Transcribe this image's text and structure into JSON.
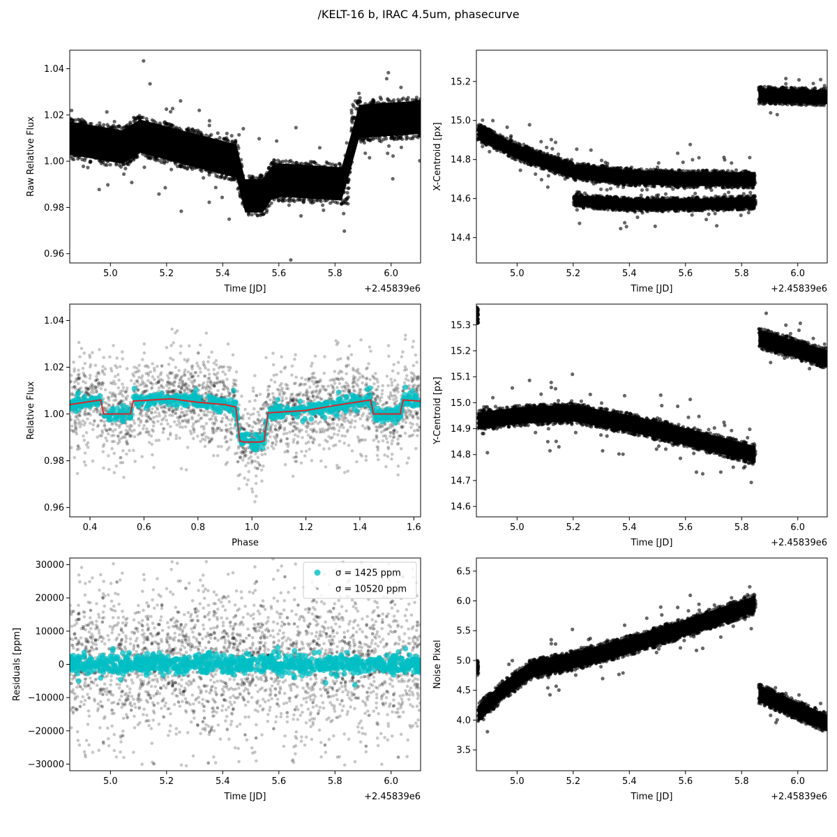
{
  "figure": {
    "title": "/KELT-16 b, IRAC 4.5um, phasecurve",
    "offset_label": "+2.45839e6"
  },
  "colors": {
    "raw_points": "#000000",
    "binned_points": "#00bfc4",
    "model_line": "#d62728",
    "axes": "#000000"
  },
  "chart_data": [
    {
      "id": "raw_flux",
      "type": "scatter",
      "title": "",
      "xlabel": "Time [JD]",
      "ylabel": "Raw Relative Flux",
      "x_offset_label": "+2.45839e6",
      "xlim": [
        4.855,
        6.105
      ],
      "ylim": [
        0.956,
        1.048
      ],
      "xticks": [
        5.0,
        5.2,
        5.4,
        5.6,
        5.8,
        6.0
      ],
      "yticks": [
        0.96,
        0.98,
        1.0,
        1.02,
        1.04
      ],
      "ytick_labels": [
        "0.96",
        "0.98",
        "1.00",
        "1.02",
        "1.04"
      ],
      "xtick_labels": [
        "5.0",
        "5.2",
        "5.4",
        "5.6",
        "5.8",
        "6.0"
      ],
      "series": [
        {
          "style": "dense-band",
          "opacity": 0.6,
          "center": [
            [
              4.855,
              1.01
            ],
            [
              5.05,
              1.006
            ],
            [
              5.1,
              1.011
            ],
            [
              5.45,
              1.0
            ],
            [
              5.48,
              0.985
            ],
            [
              5.55,
              0.985
            ],
            [
              5.58,
              0.992
            ],
            [
              5.85,
              0.99
            ],
            [
              5.86,
              1.017
            ],
            [
              6.105,
              1.019
            ]
          ],
          "halfwidth": 0.009,
          "outlier_halfwidth": 0.022
        }
      ]
    },
    {
      "id": "x_centroid",
      "type": "scatter",
      "title": "",
      "xlabel": "Time [JD]",
      "ylabel": "X-Centroid [px]",
      "x_offset_label": "+2.45839e6",
      "xlim": [
        4.855,
        6.105
      ],
      "ylim": [
        14.27,
        15.36
      ],
      "xticks": [
        5.0,
        5.2,
        5.4,
        5.6,
        5.8,
        6.0
      ],
      "yticks": [
        14.4,
        14.6,
        14.8,
        15.0,
        15.2
      ],
      "ytick_labels": [
        "14.4",
        "14.6",
        "14.8",
        "15.0",
        "15.2"
      ],
      "xtick_labels": [
        "5.0",
        "5.2",
        "5.4",
        "5.6",
        "5.8",
        "6.0"
      ],
      "series": [
        {
          "style": "dense-band",
          "opacity": 0.6,
          "center": [
            [
              4.86,
              14.94
            ],
            [
              5.0,
              14.84
            ],
            [
              5.2,
              14.74
            ],
            [
              5.4,
              14.71
            ],
            [
              5.6,
              14.7
            ],
            [
              5.85,
              14.7
            ]
          ],
          "halfwidth": 0.045,
          "outlier_halfwidth": 0.12
        },
        {
          "style": "dense-band",
          "opacity": 0.6,
          "center": [
            [
              5.2,
              14.59
            ],
            [
              5.4,
              14.57
            ],
            [
              5.6,
              14.57
            ],
            [
              5.85,
              14.58
            ]
          ],
          "halfwidth": 0.035,
          "outlier_halfwidth": 0.09
        },
        {
          "style": "dense-band",
          "opacity": 0.6,
          "center": [
            [
              5.86,
              15.13
            ],
            [
              6.105,
              15.12
            ]
          ],
          "halfwidth": 0.045,
          "outlier_halfwidth": 0.11
        }
      ]
    },
    {
      "id": "phase_flux",
      "type": "scatter",
      "title": "",
      "xlabel": "Phase",
      "ylabel": "Relative Flux",
      "xlim": [
        0.325,
        1.625
      ],
      "ylim": [
        0.956,
        1.047
      ],
      "xticks": [
        0.4,
        0.6,
        0.8,
        1.0,
        1.2,
        1.4,
        1.6
      ],
      "yticks": [
        0.96,
        0.98,
        1.0,
        1.02,
        1.04
      ],
      "ytick_labels": [
        "0.96",
        "0.98",
        "1.00",
        "1.02",
        "1.04"
      ],
      "xtick_labels": [
        "0.4",
        "0.6",
        "0.8",
        "1.0",
        "1.2",
        "1.4",
        "1.6"
      ],
      "model": {
        "name": "model",
        "x": [
          0.325,
          0.44,
          0.45,
          0.55,
          0.56,
          0.7,
          0.8,
          0.9,
          0.94,
          0.955,
          0.97,
          1.03,
          1.045,
          1.06,
          1.2,
          1.3,
          1.44,
          1.45,
          1.55,
          1.56,
          1.625
        ],
        "y": [
          1.004,
          1.006,
          1.0,
          1.0,
          1.0055,
          1.0065,
          1.005,
          1.004,
          1.003,
          0.9885,
          0.988,
          0.988,
          0.9885,
          1.0005,
          1.0015,
          1.0035,
          1.006,
          1.0,
          1.0,
          1.006,
          1.0055
        ]
      },
      "series": [
        {
          "style": "faint-band",
          "opacity": 0.22,
          "halfwidth": 0.014,
          "outlier_halfwidth": 0.03
        },
        {
          "style": "binned",
          "opacity": 0.75,
          "halfwidth": 0.0015
        }
      ]
    },
    {
      "id": "y_centroid",
      "type": "scatter",
      "title": "",
      "xlabel": "Time [JD]",
      "ylabel": "Y-Centroid [px]",
      "x_offset_label": "+2.45839e6",
      "xlim": [
        4.855,
        6.105
      ],
      "ylim": [
        14.56,
        15.38
      ],
      "xticks": [
        5.0,
        5.2,
        5.4,
        5.6,
        5.8,
        6.0
      ],
      "yticks": [
        14.6,
        14.7,
        14.8,
        14.9,
        15.0,
        15.1,
        15.2,
        15.3
      ],
      "ytick_labels": [
        "14.6",
        "14.7",
        "14.8",
        "14.9",
        "15.0",
        "15.1",
        "15.2",
        "15.3"
      ],
      "xtick_labels": [
        "5.0",
        "5.2",
        "5.4",
        "5.6",
        "5.8",
        "6.0"
      ],
      "series": [
        {
          "style": "dense-band",
          "opacity": 0.6,
          "center": [
            [
              4.86,
              14.93
            ],
            [
              5.0,
              14.95
            ],
            [
              5.2,
              14.96
            ],
            [
              5.4,
              14.92
            ],
            [
              5.6,
              14.87
            ],
            [
              5.85,
              14.8
            ]
          ],
          "halfwidth": 0.04,
          "outlier_halfwidth": 0.1
        },
        {
          "style": "dense-band",
          "opacity": 0.6,
          "center": [
            [
              5.86,
              15.25
            ],
            [
              6.105,
              15.17
            ]
          ],
          "halfwidth": 0.04,
          "outlier_halfwidth": 0.1
        },
        {
          "style": "dense-band",
          "opacity": 0.6,
          "center": [
            [
              4.855,
              15.34
            ],
            [
              4.862,
              15.33
            ]
          ],
          "halfwidth": 0.03,
          "outlier_halfwidth": 0.05
        }
      ]
    },
    {
      "id": "residuals",
      "type": "scatter",
      "title": "",
      "xlabel": "Time [JD]",
      "ylabel": "Residuals [ppm]",
      "x_offset_label": "+2.45839e6",
      "xlim": [
        4.855,
        6.105
      ],
      "ylim": [
        -32000,
        32000
      ],
      "xticks": [
        5.0,
        5.2,
        5.4,
        5.6,
        5.8,
        6.0
      ],
      "yticks": [
        -30000,
        -20000,
        -10000,
        0,
        10000,
        20000,
        30000
      ],
      "ytick_labels": [
        "−30000",
        "−20000",
        "−10000",
        "0",
        "10000",
        "20000",
        "30000"
      ],
      "xtick_labels": [
        "5.0",
        "5.2",
        "5.4",
        "5.6",
        "5.8",
        "6.0"
      ],
      "legend": {
        "placement": "upper right",
        "entries": [
          {
            "label": "σ = 1425 ppm",
            "style": "binned"
          },
          {
            "label": "σ = 10520 ppm",
            "style": "raw"
          }
        ]
      },
      "series": [
        {
          "name": "σ = 10520 ppm",
          "style": "faint-band",
          "opacity": 0.22,
          "halfwidth": 10520,
          "outlier_halfwidth": 31000
        },
        {
          "name": "σ = 1425 ppm",
          "style": "binned",
          "opacity": 0.75,
          "halfwidth": 1425
        }
      ]
    },
    {
      "id": "noise_pixel",
      "type": "scatter",
      "title": "",
      "xlabel": "Time [JD]",
      "ylabel": "Noise Pixel",
      "x_offset_label": "+2.45839e6",
      "xlim": [
        4.855,
        6.105
      ],
      "ylim": [
        3.15,
        6.72
      ],
      "xticks": [
        5.0,
        5.2,
        5.4,
        5.6,
        5.8,
        6.0
      ],
      "yticks": [
        3.5,
        4.0,
        4.5,
        5.0,
        5.5,
        6.0,
        6.5
      ],
      "ytick_labels": [
        "3.5",
        "4.0",
        "4.5",
        "5.0",
        "5.5",
        "6.0",
        "6.5"
      ],
      "xtick_labels": [
        "5.0",
        "5.2",
        "5.4",
        "5.6",
        "5.8",
        "6.0"
      ],
      "series": [
        {
          "style": "dense-band",
          "opacity": 0.6,
          "center": [
            [
              4.86,
              4.1
            ],
            [
              4.95,
              4.5
            ],
            [
              5.05,
              4.85
            ],
            [
              5.2,
              5.0
            ],
            [
              5.4,
              5.25
            ],
            [
              5.6,
              5.55
            ],
            [
              5.85,
              5.95
            ]
          ],
          "halfwidth": 0.17,
          "outlier_halfwidth": 0.35
        },
        {
          "style": "dense-band",
          "opacity": 0.6,
          "center": [
            [
              5.86,
              4.45
            ],
            [
              6.105,
              3.95
            ]
          ],
          "halfwidth": 0.17,
          "outlier_halfwidth": 0.35
        },
        {
          "style": "dense-band",
          "opacity": 0.6,
          "center": [
            [
              4.855,
              4.9
            ],
            [
              4.862,
              4.85
            ]
          ],
          "halfwidth": 0.12,
          "outlier_halfwidth": 0.2
        }
      ]
    }
  ]
}
